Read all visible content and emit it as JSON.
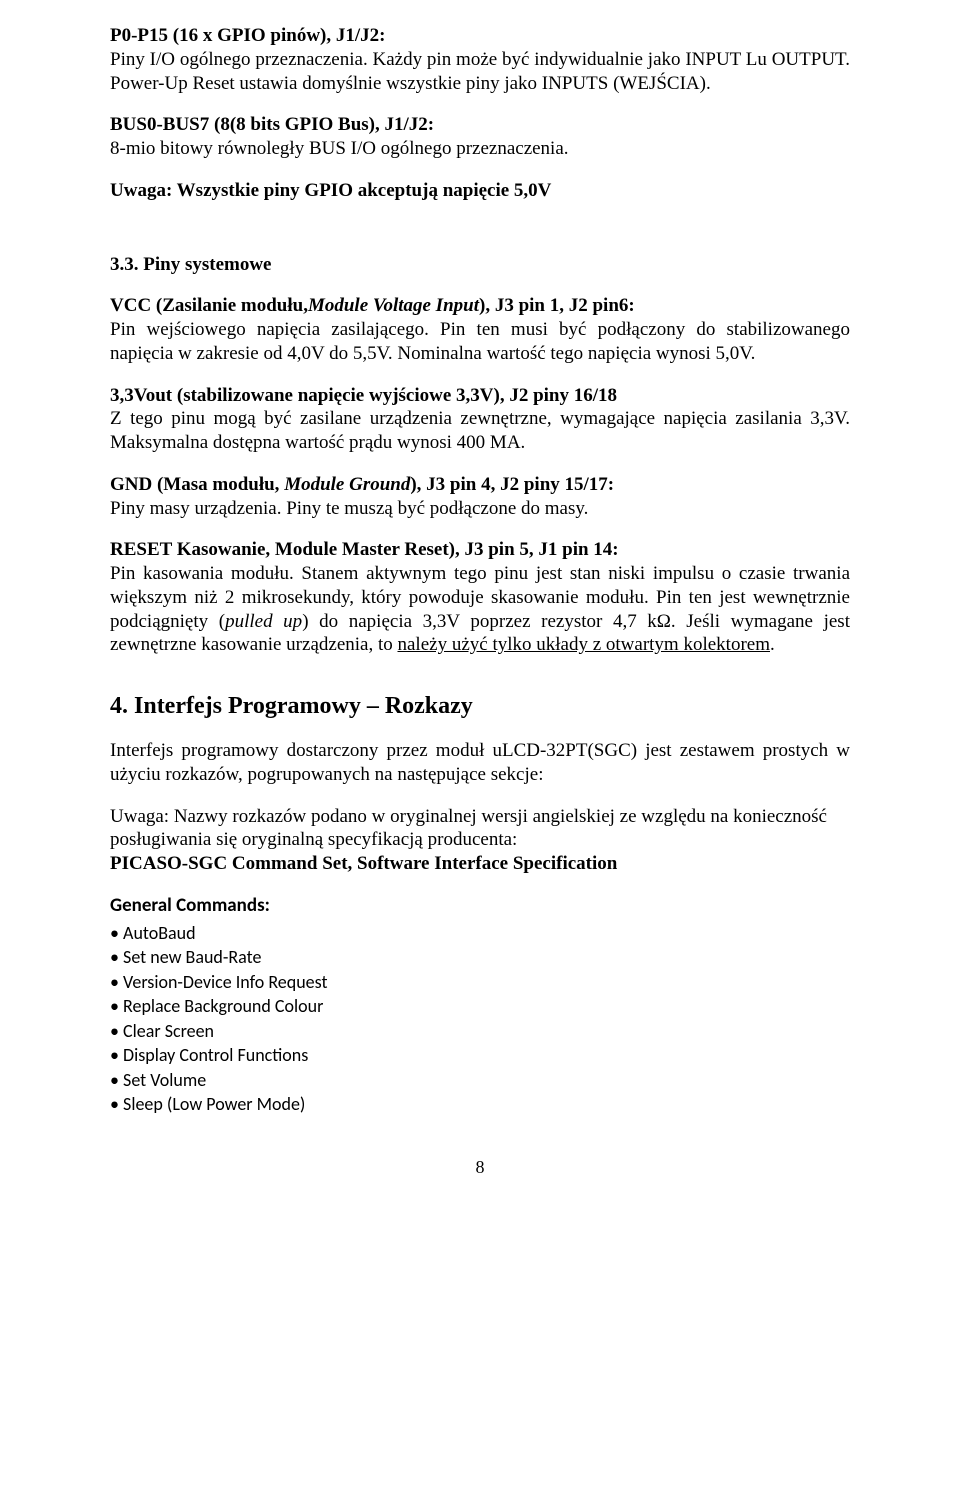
{
  "p0": {
    "head_bold": "P0-P15 (16 x GPIO pinów), J1/J2:",
    "body_a": "Piny I/O ogólnego przeznaczenia. Każdy pin może być indywidualnie jako INPUT Lu OUTPUT. Power-Up Reset ustawia domyślnie wszystkie piny jako INPUTS (WEJŚCIA)."
  },
  "p1": {
    "head_bold": "BUS0-BUS7 (8(8 bits GPIO Bus), J1/J2:",
    "body_a": "8-mio bitowy równoległy BUS I/O ogólnego przeznaczenia."
  },
  "warn": "Uwaga: Wszystkie piny GPIO akceptują napięcie 5,0V",
  "s33": {
    "num": "3.3. Piny systemowe",
    "vcc_head_a": "VCC (Zasilanie modułu,",
    "vcc_head_it": "Module Voltage Input",
    "vcc_head_b": "), J3 pin 1, J2 pin6:",
    "vcc_body": "Pin wejściowego napięcia zasilającego. Pin ten musi być podłączony do stabilizowanego napięcia w zakresie od 4,0V do 5,5V. Nominalna wartość tego napięcia wynosi 5,0V.",
    "v33_head": "3,3Vout (stabilizowane napięcie wyjściowe 3,3V), J2 piny 16/18",
    "v33_body": "Z tego pinu mogą być zasilane urządzenia zewnętrzne, wymagające napięcia zasilania 3,3V. Maksymalna dostępna wartość prądu wynosi 400 MA.",
    "gnd_head_a": "GND (Masa modułu, ",
    "gnd_head_it": "Module Ground",
    "gnd_head_b": "), J3 pin 4, J2 piny 15/17:",
    "gnd_body": "Piny masy urządzenia. Piny te muszą być podłączone do masy.",
    "rst_head": "RESET Kasowanie, Module Master Reset), J3 pin 5, J1 pin 14:",
    "rst_body_a": "Pin kasowania modułu. Stanem aktywnym tego pinu jest stan niski impulsu o czasie trwania większym niż 2 mikrosekundy, który powoduje skasowanie modułu. Pin ten jest wewnętrznie podciągnięty (",
    "rst_body_it": "pulled up",
    "rst_body_b": ") do napięcia 3,3V poprzez rezystor 4,7 kΩ. Jeśli wymagane jest zewnętrzne kasowanie urządzenia, to ",
    "rst_body_u": "należy użyć tylko układy z otwartym kolektorem",
    "rst_body_c": "."
  },
  "s4": {
    "title": "4. Interfejs Programowy – Rozkazy",
    "intro": "Interfejs programowy dostarczony przez moduł uLCD-32PT(SGC) jest zestawem prostych w użyciu rozkazów, pogrupowanych na następujące sekcje:",
    "note_a": "Uwaga: Nazwy rozkazów podano w oryginalnej wersji angielskiej ze względu na konieczność posługiwania się oryginalną specyfikacją producenta:",
    "note_b": "PICASO-SGC Command Set, Software Interface Specification",
    "gc_head": "General Commands:",
    "cmds": [
      "AutoBaud",
      "Set new Baud-Rate",
      "Version-Device Info Request",
      "Replace Background Colour",
      "Clear Screen",
      "Display Control Functions",
      "Set Volume",
      "Sleep (Low Power Mode)"
    ]
  },
  "pagenum": "8"
}
